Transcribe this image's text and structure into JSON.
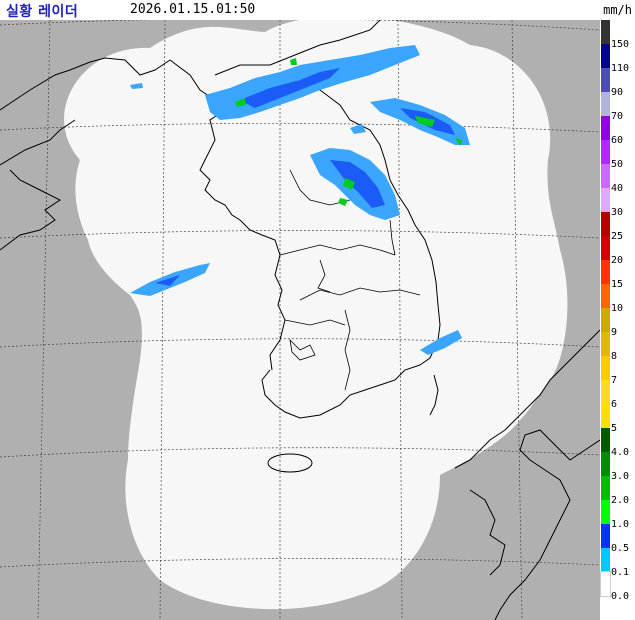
{
  "header": {
    "title": "실황 레이더",
    "timestamp": "2026.01.15.01:50",
    "unit": "mm/h"
  },
  "legend": [
    {
      "label": "150",
      "color": "#333333"
    },
    {
      "label": "110",
      "color": "#000390"
    },
    {
      "label": "90",
      "color": "#4c4eb1"
    },
    {
      "label": "70",
      "color": "#b3b4de"
    },
    {
      "label": "60",
      "color": "#9300e4"
    },
    {
      "label": "50",
      "color": "#b229ff"
    },
    {
      "label": "40",
      "color": "#c86bff"
    },
    {
      "label": "30",
      "color": "#e0a9ff"
    },
    {
      "label": "25",
      "color": "#b40000"
    },
    {
      "label": "20",
      "color": "#d20000"
    },
    {
      "label": "15",
      "color": "#ff3300"
    },
    {
      "label": "10",
      "color": "#ff6600"
    },
    {
      "label": "9",
      "color": "#ccaa00"
    },
    {
      "label": "8",
      "color": "#e0b900"
    },
    {
      "label": "7",
      "color": "#f9cd00"
    },
    {
      "label": "6",
      "color": "#ffdc1f"
    },
    {
      "label": "5",
      "color": "#ffe100"
    },
    {
      "label": "4.0",
      "color": "#005a00"
    },
    {
      "label": "3.0",
      "color": "#008c00"
    },
    {
      "label": "2.0",
      "color": "#00be00"
    },
    {
      "label": "1.0",
      "color": "#00ff00"
    },
    {
      "label": "0.5",
      "color": "#0033f5"
    },
    {
      "label": "0.1",
      "color": "#00c8ff"
    },
    {
      "label": "0.0",
      "color": "#ffffff"
    }
  ],
  "colors": {
    "outside_coverage": "#b0b0b0",
    "coverage": "#f7f7f7",
    "echo_light": "#3ba6ff",
    "echo_medium": "#1a5cf5",
    "echo_green": "#00cc22",
    "title": "#2020c0"
  }
}
